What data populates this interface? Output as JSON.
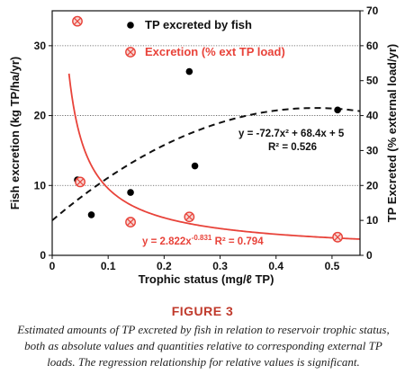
{
  "chart_data": {
    "type": "scatter",
    "x_axis": {
      "label": "Trophic status (mg/ℓ TP)",
      "range": [
        0,
        0.55
      ],
      "ticks": [
        0,
        0.1,
        0.2,
        0.3,
        0.4,
        0.5
      ],
      "tick_labels": [
        "0",
        "0.1",
        "0.2",
        "0.3",
        "0.4",
        "0.5"
      ]
    },
    "y_axis_left": {
      "label": "Fish excretion (kg TP/ha/yr)",
      "range": [
        0,
        35
      ],
      "ticks": [
        0,
        10,
        20,
        30
      ],
      "tick_labels": [
        "0",
        "10",
        "20",
        "30"
      ],
      "gridlines": [
        10,
        20,
        30
      ]
    },
    "y_axis_right": {
      "label": "TP Excreted (% external load/yr)",
      "range": [
        0,
        70
      ],
      "ticks": [
        0,
        10,
        20,
        30,
        40,
        50,
        60,
        70
      ],
      "tick_labels": [
        "0",
        "10",
        "20",
        "30",
        "40",
        "50",
        "60",
        "70"
      ]
    },
    "series": [
      {
        "name": "TP excreted by fish",
        "axis": "left",
        "marker": "filled-circle",
        "color": "#000000",
        "points": [
          {
            "x": 0.045,
            "y": 10.8
          },
          {
            "x": 0.07,
            "y": 5.8
          },
          {
            "x": 0.14,
            "y": 9.0
          },
          {
            "x": 0.245,
            "y": 26.3
          },
          {
            "x": 0.255,
            "y": 12.8
          },
          {
            "x": 0.51,
            "y": 20.8
          }
        ]
      },
      {
        "name": "Excretion (% ext TP load)",
        "axis": "right",
        "marker": "crossed-circle",
        "color": "#e8433a",
        "points": [
          {
            "x": 0.045,
            "y": 67.0
          },
          {
            "x": 0.05,
            "y": 21.0
          },
          {
            "x": 0.14,
            "y": 9.5
          },
          {
            "x": 0.245,
            "y": 11.0
          },
          {
            "x": 0.51,
            "y": 5.2
          }
        ]
      }
    ],
    "fits": [
      {
        "axis": "left",
        "kind": "polynomial",
        "coefficients": {
          "a": -72.7,
          "b": 68.4,
          "c": 5
        },
        "style": "dashed",
        "color": "#111111",
        "equation": "y = -72.7x² + 68.4x + 5",
        "r2": "R² = 0.526"
      },
      {
        "axis": "right",
        "kind": "power",
        "coefficients": {
          "a": 2.822,
          "b": -0.831
        },
        "style": "solid",
        "color": "#e8433a",
        "equation": "y = 2.822x",
        "exponent": "-0.831",
        "r2": "R² = 0.794"
      }
    ],
    "legend": {
      "placement": "top-center"
    }
  },
  "figure": {
    "label": "FIGURE 3",
    "caption": "Estimated amounts of TP excreted by fish in relation to reservoir trophic status, both as absolute values and quantities relative to corresponding external TP loads. The regression relationship for relative values is significant."
  }
}
